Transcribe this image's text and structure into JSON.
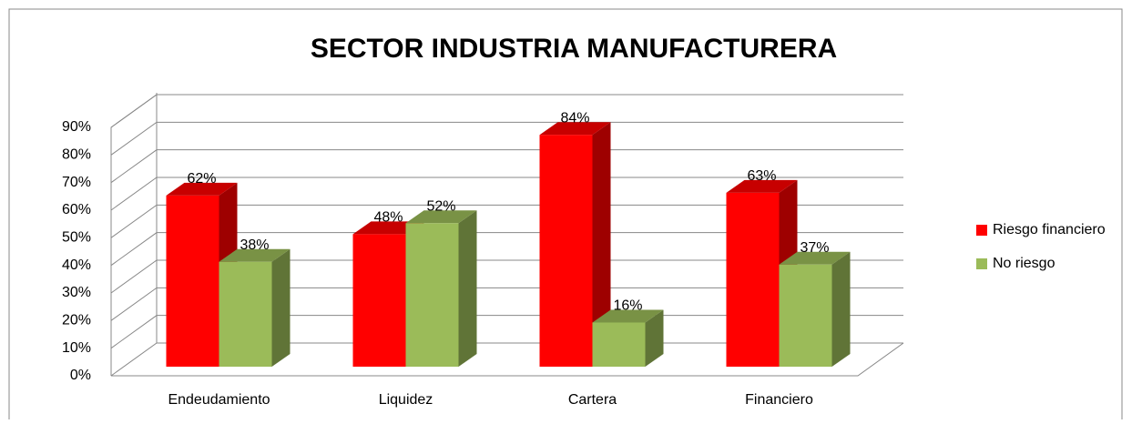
{
  "chart_data": {
    "type": "bar",
    "title": "SECTOR INDUSTRIA MANUFACTURERA",
    "categories": [
      "Endeudamiento",
      "Liquidez",
      "Cartera",
      "Financiero"
    ],
    "series": [
      {
        "name": "Riesgo financiero",
        "color": "#ff0000",
        "values": [
          62,
          48,
          84,
          63
        ],
        "value_labels": [
          "62%",
          "48%",
          "84%",
          "63%"
        ]
      },
      {
        "name": "No riesgo",
        "color": "#9bbb59",
        "values": [
          38,
          52,
          16,
          37
        ],
        "value_labels": [
          "38%",
          "52%",
          "16%",
          "37%"
        ]
      }
    ],
    "ylim": [
      0,
      90
    ],
    "yticks": [
      {
        "value": 0,
        "label": "0%"
      },
      {
        "value": 10,
        "label": "10%"
      },
      {
        "value": 20,
        "label": "20%"
      },
      {
        "value": 30,
        "label": "30%"
      },
      {
        "value": 40,
        "label": "40%"
      },
      {
        "value": 50,
        "label": "50%"
      },
      {
        "value": 60,
        "label": "60%"
      },
      {
        "value": 70,
        "label": "70%"
      },
      {
        "value": 80,
        "label": "80%"
      },
      {
        "value": 90,
        "label": "90%"
      }
    ],
    "grid": true,
    "legend": "right"
  }
}
